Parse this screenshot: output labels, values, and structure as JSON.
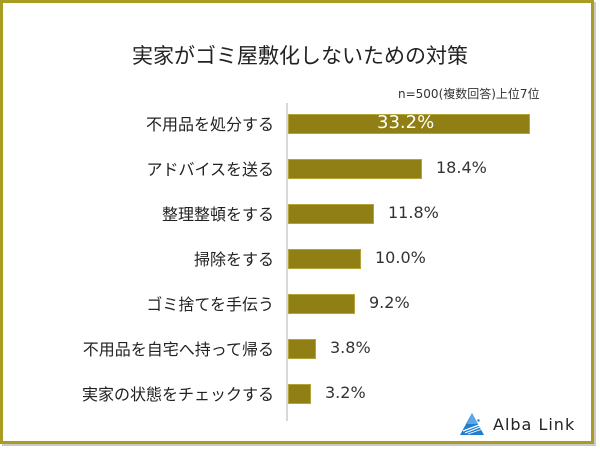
{
  "chart_data": {
    "type": "bar",
    "orientation": "horizontal",
    "title": "実家がゴミ屋敷化しないための対策",
    "subtitle": "n=500(複数回答)上位7位",
    "categories": [
      "不用品を処分する",
      "アドバイスを送る",
      "整理整頓をする",
      "掃除をする",
      "ゴミ捨てを手伝う",
      "不用品を自宅へ持って帰る",
      "実家の状態をチェックする"
    ],
    "values": [
      33.2,
      18.4,
      11.8,
      10.0,
      9.2,
      3.8,
      3.2
    ],
    "value_labels": [
      "33.2%",
      "18.4%",
      "11.8%",
      "10.0%",
      "9.2%",
      "3.8%",
      "3.2%"
    ],
    "unit": "%",
    "xlabel": "",
    "ylabel": "",
    "grid": false,
    "legend": null,
    "bar_color": "#8f7f14"
  },
  "chart": {
    "title": "実家がゴミ屋敷化しないための対策",
    "note": "n=500(複数回答)上位7位"
  },
  "branding": {
    "logo_text": "Alba Link",
    "logo_color": "#1e7fd0"
  },
  "colors": {
    "frame": "#a99c22",
    "bar": "#8f7f14",
    "axis": "#d8d8d8"
  }
}
